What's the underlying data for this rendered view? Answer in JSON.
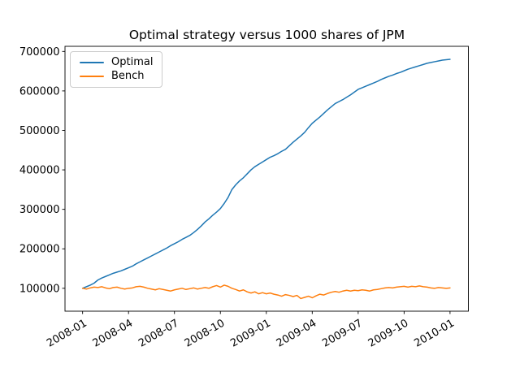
{
  "figure": {
    "title": "Optimal strategy versus 1000 shares of JPM",
    "background": "#ffffff"
  },
  "legend": {
    "position": "upper left",
    "items": [
      {
        "label": "Optimal",
        "color": "#1f77b4"
      },
      {
        "label": "Bench",
        "color": "#ff7f0e"
      }
    ]
  },
  "chart_data": {
    "type": "line",
    "title": "Optimal strategy versus 1000 shares of JPM",
    "xlabel": "",
    "ylabel": "",
    "grid": false,
    "legend_position": "upper left",
    "x_unit": "months since 2008-01",
    "x_step": 0.25,
    "xlim": [
      -1.15,
      25.2
    ],
    "ylim": [
      42000,
      713000
    ],
    "x_tick_positions": [
      0,
      3,
      6,
      9,
      12,
      15,
      18,
      21,
      24
    ],
    "x_tick_labels": [
      "2008-01",
      "2008-04",
      "2008-07",
      "2008-10",
      "2009-01",
      "2009-04",
      "2009-07",
      "2009-10",
      "2010-01"
    ],
    "y_ticks": [
      100000,
      200000,
      300000,
      400000,
      500000,
      600000,
      700000
    ],
    "series": [
      {
        "name": "Optimal",
        "color": "#1f77b4",
        "values": [
          100000,
          104000,
          108000,
          113000,
          121000,
          126000,
          130000,
          134000,
          138000,
          141000,
          144000,
          148000,
          152000,
          156000,
          162000,
          167000,
          172000,
          177000,
          182000,
          187000,
          192000,
          197000,
          202000,
          208000,
          213000,
          218000,
          224000,
          229000,
          234000,
          241000,
          249000,
          258000,
          268000,
          276000,
          285000,
          293000,
          302000,
          315000,
          330000,
          350000,
          362000,
          372000,
          380000,
          390000,
          400000,
          408000,
          414000,
          420000,
          426000,
          432000,
          436000,
          441000,
          447000,
          452000,
          461000,
          470000,
          478000,
          486000,
          495000,
          507000,
          518000,
          526000,
          534000,
          543000,
          552000,
          560000,
          568000,
          573000,
          578000,
          584000,
          590000,
          597000,
          604000,
          608000,
          612000,
          616000,
          620000,
          624000,
          629000,
          633000,
          637000,
          640000,
          644000,
          647000,
          651000,
          655000,
          658000,
          661000,
          664000,
          667000,
          670000,
          672000,
          674000,
          676000,
          678000,
          679000,
          680000
        ]
      },
      {
        "name": "Bench",
        "color": "#ff7f0e",
        "values": [
          100000,
          98000,
          101000,
          103000,
          102000,
          104000,
          101000,
          99000,
          102000,
          103000,
          100000,
          98000,
          100000,
          101000,
          104000,
          105000,
          103000,
          100000,
          98000,
          96000,
          99000,
          97000,
          95000,
          93000,
          96000,
          98000,
          100000,
          97000,
          99000,
          101000,
          98000,
          100000,
          102000,
          100000,
          104000,
          107000,
          103000,
          108000,
          105000,
          100000,
          97000,
          93000,
          96000,
          91000,
          88000,
          91000,
          86000,
          89000,
          86000,
          88000,
          85000,
          83000,
          80000,
          84000,
          82000,
          79000,
          82000,
          74000,
          77000,
          80000,
          76000,
          81000,
          85000,
          83000,
          87000,
          90000,
          92000,
          90000,
          93000,
          95000,
          93000,
          95000,
          94000,
          96000,
          95000,
          93000,
          96000,
          97000,
          99000,
          101000,
          102000,
          101000,
          103000,
          104000,
          105000,
          103000,
          105000,
          104000,
          106000,
          104000,
          103000,
          101000,
          100000,
          102000,
          101000,
          100000,
          101000
        ]
      }
    ]
  }
}
